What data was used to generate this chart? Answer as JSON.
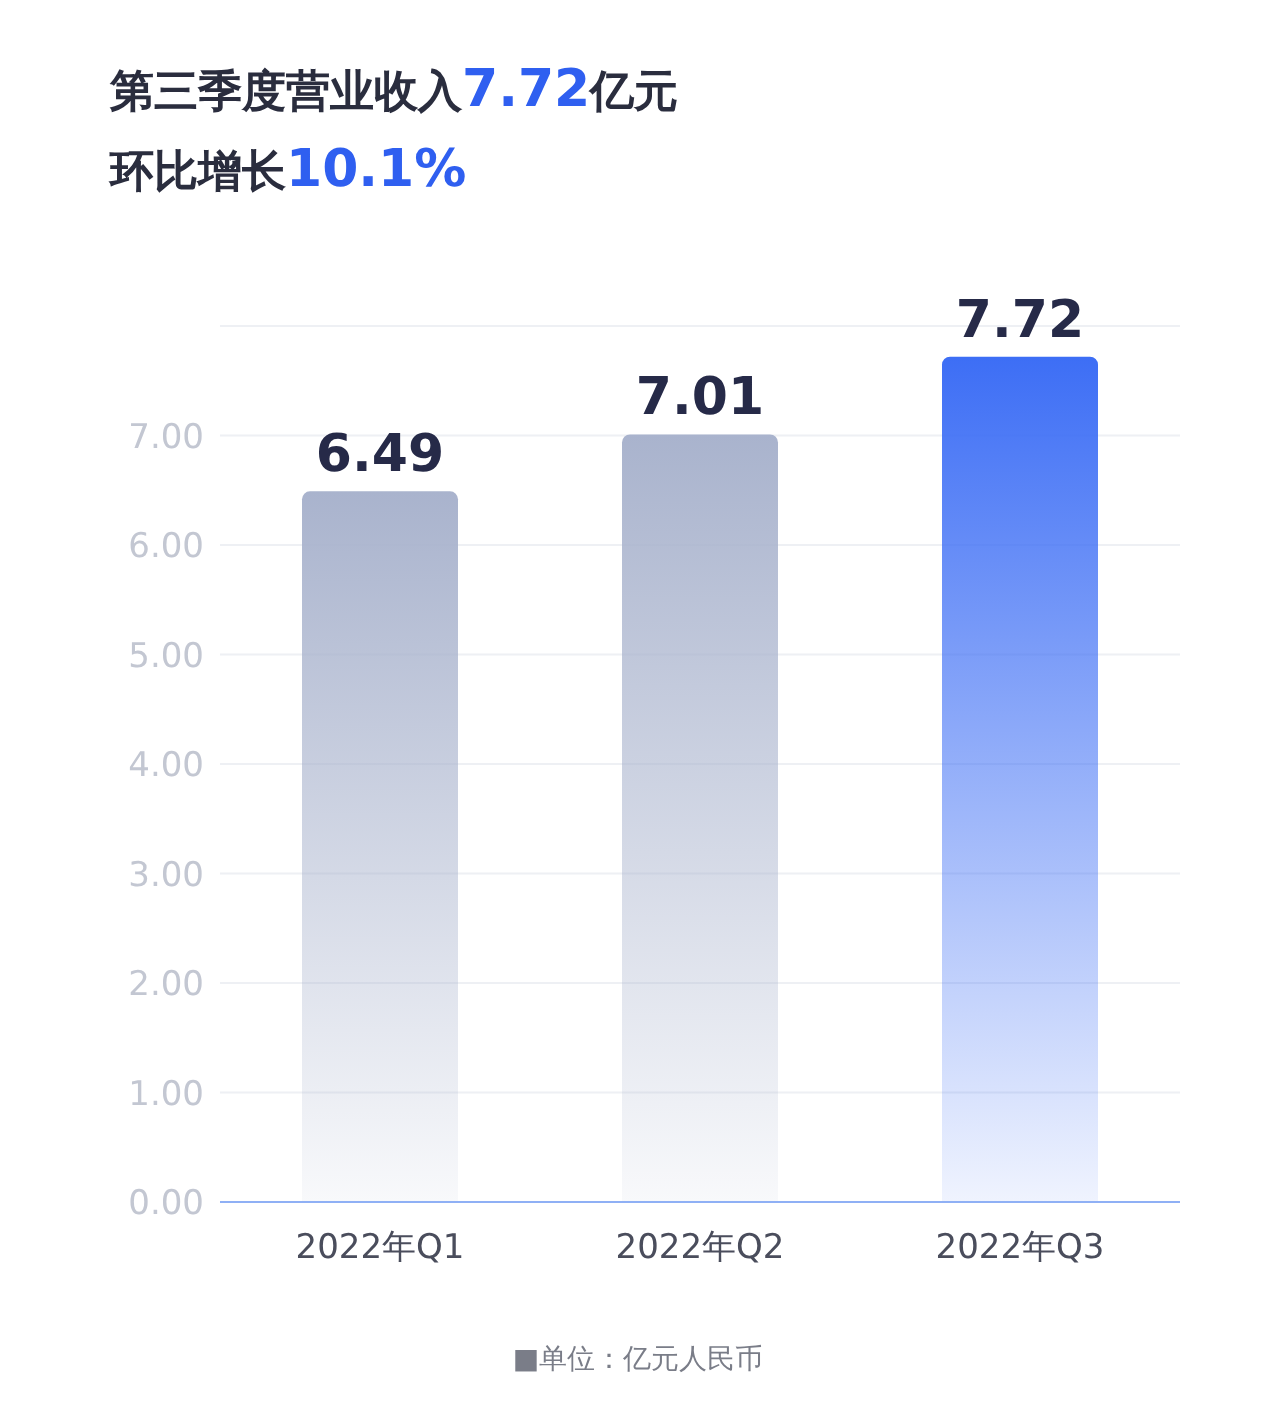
{
  "chart_data": {
    "type": "bar",
    "title": "第三季度营业收入7.72亿元",
    "subtitle": "环比增长10.1%",
    "categories": [
      "2022年Q1",
      "2022年Q2",
      "2022年Q3"
    ],
    "values": [
      6.49,
      7.01,
      7.72
    ],
    "colors": [
      "#a9b3cd",
      "#a9b3cd",
      "#3d6ef5"
    ],
    "ylim": [
      0,
      8
    ],
    "yticks": [
      {
        "value": 0,
        "label": "0.00"
      },
      {
        "value": 1,
        "label": "1.00"
      },
      {
        "value": 2,
        "label": "2.00"
      },
      {
        "value": 3,
        "label": "3.00"
      },
      {
        "value": 4,
        "label": "4.00"
      },
      {
        "value": 5,
        "label": "5.00"
      },
      {
        "value": 6,
        "label": "6.00"
      },
      {
        "value": 7,
        "label": "7.00"
      }
    ],
    "grid": "y",
    "data_labels": true,
    "annotations": [
      "■单位：亿元人民币"
    ]
  }
}
